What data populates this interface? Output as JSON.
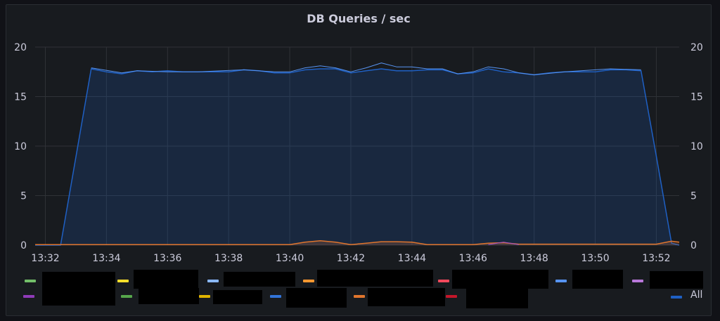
{
  "panel": {
    "title": "DB Queries / sec"
  },
  "chart_data": {
    "type": "area",
    "title": "DB Queries / sec",
    "x_ticks": [
      "13:32",
      "13:34",
      "13:36",
      "13:38",
      "13:40",
      "13:42",
      "13:44",
      "13:46",
      "13:48",
      "13:50",
      "13:52"
    ],
    "y_ticks": [
      "0",
      "5",
      "10",
      "15",
      "20"
    ],
    "ylim": [
      0,
      20
    ],
    "xlim": [
      "13:31:40",
      "13:52:45"
    ],
    "grid": true,
    "legend_placement": "bottom",
    "series": [
      {
        "name": "All",
        "color": "#1f60c4",
        "fill": true,
        "points": [
          [
            "13:31:40",
            0
          ],
          [
            "13:32:30",
            0
          ],
          [
            "13:33:30",
            17.8
          ],
          [
            "13:34:00",
            17.5
          ],
          [
            "13:34:30",
            17.3
          ],
          [
            "13:35:00",
            17.6
          ],
          [
            "13:35:30",
            17.5
          ],
          [
            "13:36:00",
            17.6
          ],
          [
            "13:36:30",
            17.5
          ],
          [
            "13:37:00",
            17.5
          ],
          [
            "13:37:30",
            17.5
          ],
          [
            "13:38:00",
            17.5
          ],
          [
            "13:38:30",
            17.7
          ],
          [
            "13:39:00",
            17.6
          ],
          [
            "13:39:30",
            17.4
          ],
          [
            "13:40:00",
            17.4
          ],
          [
            "13:40:30",
            17.7
          ],
          [
            "13:41:00",
            17.8
          ],
          [
            "13:41:30",
            17.8
          ],
          [
            "13:42:00",
            17.4
          ],
          [
            "13:42:30",
            17.6
          ],
          [
            "13:43:00",
            17.8
          ],
          [
            "13:43:30",
            17.6
          ],
          [
            "13:44:00",
            17.6
          ],
          [
            "13:44:30",
            17.7
          ],
          [
            "13:45:00",
            17.7
          ],
          [
            "13:45:30",
            17.3
          ],
          [
            "13:46:00",
            17.4
          ],
          [
            "13:46:30",
            17.8
          ],
          [
            "13:47:00",
            17.5
          ],
          [
            "13:47:30",
            17.4
          ],
          [
            "13:48:00",
            17.2
          ],
          [
            "13:48:30",
            17.4
          ],
          [
            "13:49:00",
            17.5
          ],
          [
            "13:49:30",
            17.5
          ],
          [
            "13:50:00",
            17.5
          ],
          [
            "13:50:30",
            17.7
          ],
          [
            "13:51:00",
            17.7
          ],
          [
            "13:51:30",
            17.6
          ],
          [
            "13:52:00",
            9
          ],
          [
            "13:52:30",
            0.2
          ],
          [
            "13:52:45",
            0
          ]
        ]
      },
      {
        "color": "#5794f2",
        "fill": false,
        "points": [
          [
            "13:33:30",
            17.9
          ],
          [
            "13:34:30",
            17.4
          ],
          [
            "13:35:00",
            17.6
          ],
          [
            "13:36:00",
            17.5
          ],
          [
            "13:37:00",
            17.5
          ],
          [
            "13:38:30",
            17.7
          ],
          [
            "13:39:30",
            17.5
          ],
          [
            "13:40:00",
            17.5
          ],
          [
            "13:40:30",
            17.9
          ],
          [
            "13:41:00",
            18.1
          ],
          [
            "13:41:30",
            17.9
          ],
          [
            "13:42:00",
            17.5
          ],
          [
            "13:42:30",
            17.9
          ],
          [
            "13:43:00",
            18.4
          ],
          [
            "13:43:30",
            18.0
          ],
          [
            "13:44:00",
            18.0
          ],
          [
            "13:44:30",
            17.8
          ],
          [
            "13:45:00",
            17.8
          ],
          [
            "13:45:30",
            17.3
          ],
          [
            "13:46:00",
            17.5
          ],
          [
            "13:46:30",
            18.0
          ],
          [
            "13:47:00",
            17.8
          ],
          [
            "13:47:30",
            17.4
          ],
          [
            "13:48:00",
            17.2
          ],
          [
            "13:49:00",
            17.5
          ],
          [
            "13:50:30",
            17.8
          ],
          [
            "13:51:30",
            17.7
          ]
        ]
      },
      {
        "color": "#e0752d",
        "fill": true,
        "points": [
          [
            "13:31:40",
            0.05
          ],
          [
            "13:40:00",
            0.05
          ],
          [
            "13:40:30",
            0.3
          ],
          [
            "13:41:00",
            0.45
          ],
          [
            "13:41:30",
            0.3
          ],
          [
            "13:42:00",
            0.05
          ],
          [
            "13:42:30",
            0.2
          ],
          [
            "13:43:00",
            0.35
          ],
          [
            "13:43:30",
            0.35
          ],
          [
            "13:44:00",
            0.3
          ],
          [
            "13:44:30",
            0.05
          ],
          [
            "13:46:00",
            0.05
          ],
          [
            "13:46:30",
            0.2
          ],
          [
            "13:47:00",
            0.25
          ],
          [
            "13:47:30",
            0.1
          ],
          [
            "13:52:00",
            0.1
          ],
          [
            "13:52:30",
            0.4
          ],
          [
            "13:52:45",
            0.3
          ]
        ]
      },
      {
        "color": "#a352cc",
        "fill": false,
        "points": [
          [
            "13:46:30",
            0.05
          ],
          [
            "13:47:00",
            0.3
          ],
          [
            "13:47:30",
            0.05
          ]
        ]
      }
    ]
  },
  "legend": {
    "row1": [
      {
        "color": "#73bf69"
      },
      {
        "color": "#fade2a"
      },
      {
        "color": "#8ab8ff"
      },
      {
        "color": "#ff9830"
      },
      {
        "color": "#f2495c"
      },
      {
        "color": "#5794f2"
      },
      {
        "color": "#b877d9"
      }
    ],
    "row2": [
      {
        "color": "#8f3bb8"
      },
      {
        "color": "#56a64b"
      },
      {
        "color": "#e0b400"
      },
      {
        "color": "#3274d9"
      },
      {
        "color": "#e0752d"
      },
      {
        "color": "#c4162a"
      }
    ],
    "all_label": "All",
    "all_color": "#1f60c4"
  }
}
